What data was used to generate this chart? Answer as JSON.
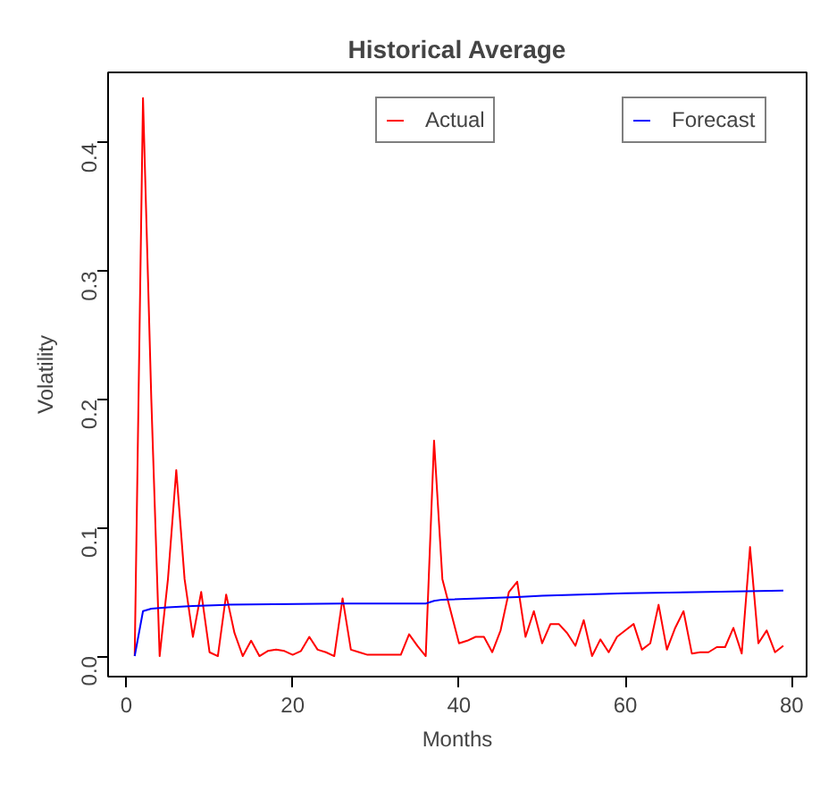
{
  "chart_data": {
    "type": "line",
    "title": "Historical Average",
    "xlabel": "Months",
    "ylabel": "Volatility",
    "x": [
      1,
      2,
      3,
      4,
      5,
      6,
      7,
      8,
      9,
      10,
      11,
      12,
      13,
      14,
      15,
      16,
      17,
      18,
      19,
      20,
      21,
      22,
      23,
      24,
      25,
      26,
      27,
      28,
      29,
      30,
      31,
      32,
      33,
      34,
      35,
      36,
      37,
      38,
      39,
      40,
      41,
      42,
      43,
      44,
      45,
      46,
      47,
      48,
      49,
      50,
      51,
      52,
      53,
      54,
      55,
      56,
      57,
      58,
      59,
      60,
      61,
      62,
      63,
      64,
      65,
      66,
      67,
      68,
      69,
      70,
      71,
      72,
      73,
      74,
      75,
      76,
      77,
      78,
      79
    ],
    "series": [
      {
        "name": "Actual",
        "color": "#ff0000",
        "values": [
          0,
          0.435,
          0.2,
          0.0,
          0.06,
          0.145,
          0.06,
          0.015,
          0.05,
          0.003,
          0.0,
          0.048,
          0.018,
          0.0,
          0.012,
          0.0,
          0.004,
          0.005,
          0.004,
          0.001,
          0.004,
          0.015,
          0.005,
          0.003,
          0.0,
          0.045,
          0.005,
          0.003,
          0.001,
          0.001,
          0.001,
          0.001,
          0.001,
          0.017,
          0.008,
          0.0,
          0.168,
          0.06,
          0.035,
          0.01,
          0.012,
          0.015,
          0.015,
          0.003,
          0.02,
          0.05,
          0.058,
          0.015,
          0.035,
          0.01,
          0.025,
          0.025,
          0.018,
          0.008,
          0.028,
          0.0,
          0.013,
          0.003,
          0.015,
          0.02,
          0.025,
          0.005,
          0.01,
          0.04,
          0.005,
          0.022,
          0.035,
          0.002,
          0.003,
          0.003,
          0.007,
          0.007,
          0.022,
          0.002,
          0.085,
          0.01,
          0.02,
          0.003,
          0.008
        ]
      },
      {
        "name": "Forecast",
        "color": "#0000ff",
        "x": [
          1,
          2,
          3,
          5,
          8,
          12,
          26,
          36,
          37,
          38,
          47,
          50,
          60,
          70,
          79
        ],
        "values": [
          0,
          0.035,
          0.037,
          0.038,
          0.039,
          0.04,
          0.041,
          0.041,
          0.043,
          0.044,
          0.046,
          0.047,
          0.049,
          0.05,
          0.051
        ]
      }
    ],
    "xlim": [
      -2.2,
      81.8
    ],
    "ylim": [
      -0.016,
      0.455
    ],
    "xticks": [
      0,
      20,
      40,
      60,
      80
    ],
    "yticks": [
      {
        "value": 0,
        "label": "0.0"
      },
      0.1,
      0.2,
      0.3,
      0.4
    ],
    "legend": "top right",
    "grid": false,
    "marker": "none",
    "line_style": "solid"
  }
}
